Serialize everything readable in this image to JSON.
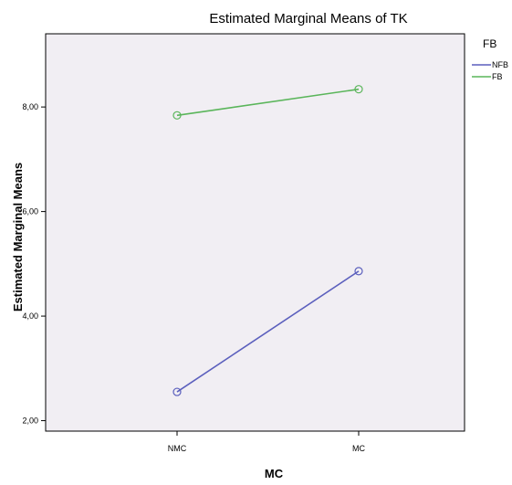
{
  "chart_data": {
    "type": "line",
    "title": "Estimated Marginal Means of TK",
    "xlabel": "MC",
    "ylabel": "Estimated Marginal Means",
    "categories": [
      "NMC",
      "MC"
    ],
    "ylim": [
      1.8,
      9.4
    ],
    "yticks": [
      "2,00",
      "4,00",
      "6,00",
      "8,00"
    ],
    "ytick_values": [
      2,
      4,
      6,
      8
    ],
    "grid": false,
    "plot_background": "#f1eef3",
    "legend": {
      "title": "FB",
      "placement": "right"
    },
    "series": [
      {
        "name": "NFB",
        "values": [
          2.55,
          4.86
        ],
        "color": "#5b5fbd"
      },
      {
        "name": "FB",
        "values": [
          7.84,
          8.34
        ],
        "color": "#5ab55a"
      }
    ]
  }
}
